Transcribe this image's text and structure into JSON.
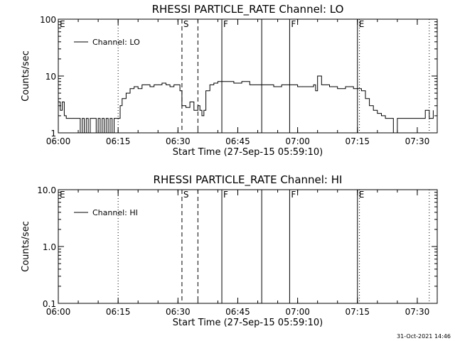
{
  "chart_data": [
    {
      "type": "line",
      "title": "RHESSI PARTICLE_RATE Channel: LO",
      "xlabel": "Start Time (27-Sep-15 05:59:10)",
      "ylabel": "Counts/sec",
      "yscale": "log",
      "xlim": [
        "06:00",
        "07:35"
      ],
      "ylim": [
        1,
        100
      ],
      "x_ticks": [
        "06:00",
        "06:15",
        "06:30",
        "06:45",
        "07:00",
        "07:15",
        "07:30"
      ],
      "y_ticks": [
        "1",
        "10",
        "100"
      ],
      "legend": {
        "entries": [
          "Channel: LO"
        ],
        "position": "top-left"
      },
      "markers": [
        {
          "time": "06:00",
          "label": "E",
          "style": "none"
        },
        {
          "time": "06:15",
          "label": "",
          "style": "dotted"
        },
        {
          "time": "06:31",
          "label": "S",
          "style": "dashed"
        },
        {
          "time": "06:35",
          "label": "",
          "style": "dashed"
        },
        {
          "time": "06:41",
          "label": "F",
          "style": "solid"
        },
        {
          "time": "06:51",
          "label": "",
          "style": "solid"
        },
        {
          "time": "06:58",
          "label": "F",
          "style": "solid"
        },
        {
          "time": "07:15",
          "label": "E",
          "style": "solid"
        },
        {
          "time": "07:15.5",
          "label": "",
          "style": "dotted"
        },
        {
          "time": "07:33",
          "label": "",
          "style": "dotted"
        }
      ],
      "series": [
        {
          "name": "Channel: LO",
          "x": [
            "06:00",
            "06:00.5",
            "06:01",
            "06:01.5",
            "06:02",
            "06:05",
            "06:05.5",
            "06:06",
            "06:06.5",
            "06:07",
            "06:07.5",
            "06:08",
            "06:08.5",
            "06:09",
            "06:09.5",
            "06:10",
            "06:10.5",
            "06:11",
            "06:11.5",
            "06:12",
            "06:12.5",
            "06:13",
            "06:13.5",
            "06:14",
            "06:14.5",
            "06:15",
            "06:15.5",
            "06:16",
            "06:17",
            "06:18",
            "06:19",
            "06:20",
            "06:21",
            "06:22",
            "06:23",
            "06:24",
            "06:25",
            "06:26",
            "06:27",
            "06:28",
            "06:29",
            "06:30",
            "06:30.5",
            "06:31",
            "06:32",
            "06:33",
            "06:34",
            "06:35",
            "06:35.5",
            "06:36",
            "06:36.5",
            "06:37",
            "06:38",
            "06:39",
            "06:40",
            "06:42",
            "06:44",
            "06:46",
            "06:48",
            "06:50",
            "06:52",
            "06:54",
            "06:56",
            "06:58",
            "07:00",
            "07:02",
            "07:04",
            "07:04.5",
            "07:05",
            "07:06",
            "07:08",
            "07:10",
            "07:12",
            "07:14",
            "07:15",
            "07:16",
            "07:17",
            "07:18",
            "07:19",
            "07:20",
            "07:21",
            "07:22",
            "07:23",
            "07:24",
            "07:25",
            "07:26",
            "07:27",
            "07:28",
            "07:29",
            "07:30",
            "07:31",
            "07:32",
            "07:33",
            "07:34"
          ],
          "y": [
            3.5,
            2.5,
            3.5,
            2,
            1.8,
            1.8,
            1,
            1.8,
            1,
            1.8,
            1,
            1.8,
            1.8,
            1.8,
            1,
            1.8,
            1,
            1.8,
            1,
            1.8,
            1,
            1.8,
            1,
            1.8,
            1.8,
            1.8,
            3,
            4,
            5,
            6,
            6.5,
            6,
            7,
            7,
            6.5,
            7,
            7,
            7.5,
            7,
            6.5,
            7,
            7,
            5.5,
            3,
            2.8,
            3.5,
            2.5,
            3,
            2.5,
            2,
            2.5,
            5.5,
            7,
            7.5,
            8,
            8,
            7.5,
            8,
            7,
            7,
            7,
            6.5,
            7,
            7,
            6.5,
            6.5,
            7,
            5.5,
            10,
            7,
            6.5,
            6,
            6.5,
            6,
            6,
            5.5,
            4,
            3,
            2.5,
            2.2,
            2,
            1.8,
            1.8,
            1,
            1.8,
            1.8,
            1.8,
            1.8,
            1.8,
            1.8,
            1.8,
            2.5,
            1.8,
            2.5
          ]
        }
      ]
    },
    {
      "type": "line",
      "title": "RHESSI PARTICLE_RATE Channel: HI",
      "xlabel": "Start Time (27-Sep-15 05:59:10)",
      "ylabel": "Counts/sec",
      "yscale": "log",
      "xlim": [
        "06:00",
        "07:35"
      ],
      "ylim": [
        0.1,
        10
      ],
      "x_ticks": [
        "06:00",
        "06:15",
        "06:30",
        "06:45",
        "07:00",
        "07:15",
        "07:30"
      ],
      "y_ticks": [
        "0.1",
        "1.0",
        "10.0"
      ],
      "legend": {
        "entries": [
          "Channel: HI"
        ],
        "position": "top-left"
      },
      "markers": [
        {
          "time": "06:00",
          "label": "E",
          "style": "none"
        },
        {
          "time": "06:15",
          "label": "",
          "style": "dotted"
        },
        {
          "time": "06:31",
          "label": "S",
          "style": "dashed"
        },
        {
          "time": "06:35",
          "label": "",
          "style": "dashed"
        },
        {
          "time": "06:41",
          "label": "F",
          "style": "solid"
        },
        {
          "time": "06:51",
          "label": "",
          "style": "solid"
        },
        {
          "time": "06:58",
          "label": "F",
          "style": "solid"
        },
        {
          "time": "07:15",
          "label": "E",
          "style": "solid"
        },
        {
          "time": "07:15.5",
          "label": "",
          "style": "dotted"
        },
        {
          "time": "07:33",
          "label": "",
          "style": "dotted"
        }
      ],
      "series": [
        {
          "name": "Channel: HI",
          "x": [],
          "y": []
        }
      ]
    }
  ],
  "footer": {
    "timestamp": "31-Oct-2021 14:46"
  }
}
